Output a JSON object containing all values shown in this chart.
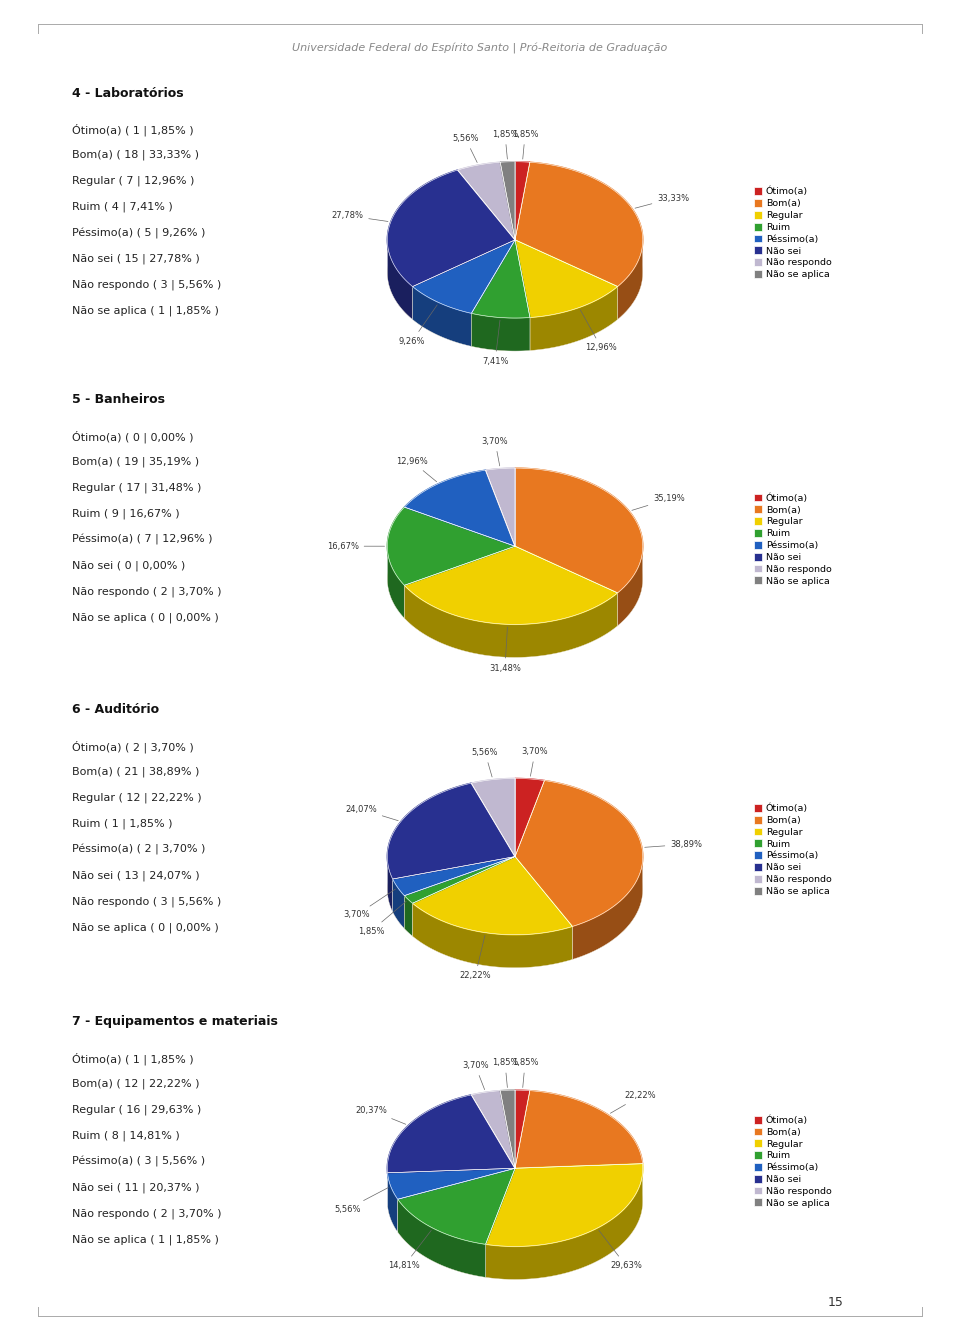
{
  "header": "Universidade Federal do Espírito Santo | Pró-Reitoria de Graduação",
  "footer_page": "15",
  "sections": [
    {
      "title": "4 - Laboratórios",
      "labels_text": [
        "Ótimo(a) ( 1 | 1,85% )",
        "Bom(a) ( 18 | 33,33% )",
        "Regular ( 7 | 12,96% )",
        "Ruim ( 4 | 7,41% )",
        "Péssimo(a) ( 5 | 9,26% )",
        "Não sei ( 15 | 27,78% )",
        "Não respondo ( 3 | 5,56% )",
        "Não se aplica ( 1 | 1,85% )"
      ],
      "values": [
        1.85,
        33.33,
        12.96,
        7.41,
        9.26,
        27.78,
        5.56,
        1.85
      ],
      "pct_labels": [
        "1,85%",
        "33,33%",
        "12,96%",
        "7,41%",
        "9,26%",
        "27,78%",
        "5,56%",
        "1,85%"
      ]
    },
    {
      "title": "5 - Banheiros",
      "labels_text": [
        "Ótimo(a) ( 0 | 0,00% )",
        "Bom(a) ( 19 | 35,19% )",
        "Regular ( 17 | 31,48% )",
        "Ruim ( 9 | 16,67% )",
        "Péssimo(a) ( 7 | 12,96% )",
        "Não sei ( 0 | 0,00% )",
        "Não respondo ( 2 | 3,70% )",
        "Não se aplica ( 0 | 0,00% )"
      ],
      "values": [
        0.0,
        35.19,
        31.48,
        16.67,
        12.96,
        0.0,
        3.7,
        0.0
      ],
      "pct_labels": [
        "0,00%",
        "35,19%",
        "31,48%",
        "16,67%",
        "12,96%",
        "0,00%",
        "3,70%",
        "0,00%"
      ]
    },
    {
      "title": "6 - Auditório",
      "labels_text": [
        "Ótimo(a) ( 2 | 3,70% )",
        "Bom(a) ( 21 | 38,89% )",
        "Regular ( 12 | 22,22% )",
        "Ruim ( 1 | 1,85% )",
        "Péssimo(a) ( 2 | 3,70% )",
        "Não sei ( 13 | 24,07% )",
        "Não respondo ( 3 | 5,56% )",
        "Não se aplica ( 0 | 0,00% )"
      ],
      "values": [
        3.7,
        38.89,
        22.22,
        1.85,
        3.7,
        24.07,
        5.56,
        0.0
      ],
      "pct_labels": [
        "3,70%",
        "38,89%",
        "22,22%",
        "1,85%",
        "3,70%",
        "24,07%",
        "5,56%",
        "0,00%"
      ]
    },
    {
      "title": "7 - Equipamentos e materiais",
      "labels_text": [
        "Ótimo(a) ( 1 | 1,85% )",
        "Bom(a) ( 12 | 22,22% )",
        "Regular ( 16 | 29,63% )",
        "Ruim ( 8 | 14,81% )",
        "Péssimo(a) ( 3 | 5,56% )",
        "Não sei ( 11 | 20,37% )",
        "Não respondo ( 2 | 3,70% )",
        "Não se aplica ( 1 | 1,85% )"
      ],
      "values": [
        1.85,
        22.22,
        29.63,
        14.81,
        5.56,
        20.37,
        3.7,
        1.85
      ],
      "pct_labels": [
        "1,85%",
        "22,22%",
        "29,63%",
        "14,81%",
        "5,56%",
        "20,37%",
        "3,70%",
        "1,85%"
      ]
    }
  ],
  "legend_labels": [
    "Ótimo(a)",
    "Bom(a)",
    "Regular",
    "Ruim",
    "Péssimo(a)",
    "Não sei",
    "Não respondo",
    "Não se aplica"
  ],
  "colors": [
    "#cc2222",
    "#e87820",
    "#f0d000",
    "#30a030",
    "#2060c0",
    "#283090",
    "#c0b8d0",
    "#808080"
  ],
  "bg_color": "#e0e0e0",
  "text_color": "#888888",
  "title_bold_color": "#111111",
  "label_color": "#222222"
}
